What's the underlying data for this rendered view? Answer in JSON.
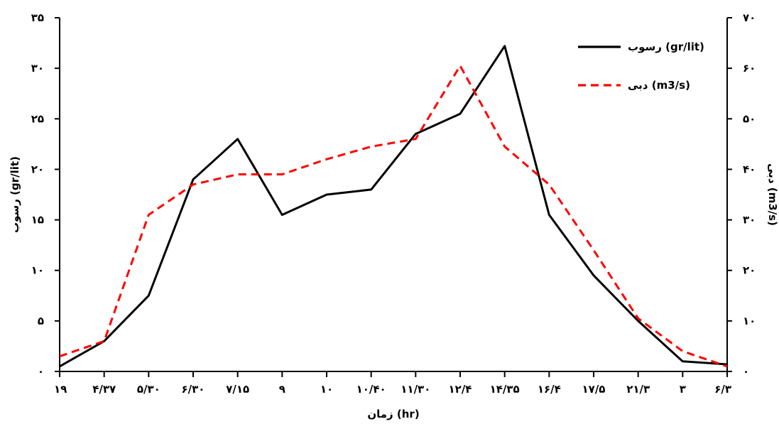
{
  "chart_data": {
    "type": "line",
    "x_categories": [
      "۱۹",
      "۴/۳۷",
      "۵/۳۰",
      "۶/۳۰",
      "۷/۱۵",
      "۹",
      "۱۰",
      "۱۰/۴۰",
      "۱۱/۳۰",
      "۱۲/۴",
      "۱۴/۳۵",
      "۱۶/۴",
      "۱۷/۵",
      "۲۱/۳",
      "۳",
      "۶/۳"
    ],
    "xlabel": "زمان (hr)",
    "ylabel_left": "رسوب (gr/lit)",
    "ylabel_right": "دبی (m3/s)",
    "y_left": {
      "min": 0,
      "max": 35,
      "ticks": [
        0,
        5,
        10,
        15,
        20,
        25,
        30,
        35
      ],
      "tick_labels": [
        "۰",
        "۵",
        "۱۰",
        "۱۵",
        "۲۰",
        "۲۵",
        "۳۰",
        "۳۵"
      ]
    },
    "y_right": {
      "min": 0,
      "max": 70,
      "ticks": [
        0,
        10,
        20,
        30,
        40,
        50,
        60,
        70
      ],
      "tick_labels": [
        "۰",
        "۱۰",
        "۲۰",
        "۳۰",
        "۴۰",
        "۵۰",
        "۶۰",
        "۷۰"
      ]
    },
    "series": [
      {
        "name": "رسوب (gr/lit)",
        "axis": "left",
        "color": "#000000",
        "style": "solid",
        "values": [
          0.5,
          3.0,
          7.5,
          19.0,
          23.0,
          15.5,
          17.5,
          18.0,
          23.5,
          25.5,
          32.2,
          15.5,
          9.5,
          5.0,
          1.0,
          0.7
        ]
      },
      {
        "name": "دبی (m3/s)",
        "axis": "right",
        "color": "#ff0000",
        "style": "dashed",
        "values": [
          3.0,
          6.0,
          31.0,
          37.0,
          39.0,
          39.0,
          42.0,
          44.5,
          46.0,
          60.5,
          44.5,
          37.0,
          24.0,
          10.5,
          4.0,
          1.0
        ]
      }
    ],
    "legend": {
      "position": "top-right"
    }
  }
}
